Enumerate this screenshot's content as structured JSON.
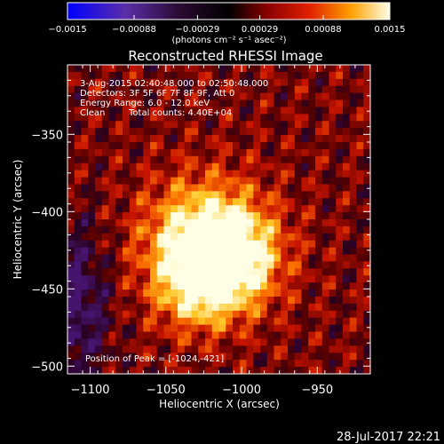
{
  "chart_data": {
    "type": "heatmap",
    "title": "Reconstructed RHESSI Image",
    "xlabel": "Heliocentric X (arcsec)",
    "ylabel": "Heliocentric Y (arcsec)",
    "xlim": [
      -1115,
      -915
    ],
    "ylim": [
      -505,
      -305
    ],
    "x_ticks": [
      -1100,
      -1050,
      -1000,
      -950
    ],
    "x_tick_labels": [
      "−1100",
      "−1050",
      "−1000",
      "−950"
    ],
    "y_ticks": [
      -350,
      -400,
      -450,
      -500
    ],
    "y_tick_labels": [
      "−350",
      "−400",
      "−450",
      "−500"
    ],
    "colorbar": {
      "range": [
        -0.0015,
        0.0015
      ],
      "ticks": [
        -0.0015,
        -0.00088,
        -0.00029,
        0.00029,
        0.00088,
        0.0015
      ],
      "tick_labels": [
        "−0.0015",
        "−0.00088",
        "−0.00029",
        "0.00029",
        "0.00088",
        "0.0015"
      ],
      "unit": "(photons cm⁻² s⁻¹ asec⁻²)"
    },
    "annotations": {
      "time_range": "3-Aug-2015 02:40:48.000 to 02:50:48.000",
      "detectors": "Detectors: 3F 5F 6F 7F 8F 9F, Att 0",
      "energy_range": "Energy Range: 6.0 - 12.0 keV",
      "method": "Clean",
      "total_counts": "Total counts: 4.40E+04",
      "peak_position": "Position of Peak = [-1024,-421]"
    },
    "peak": {
      "x": -1024,
      "y": -421
    },
    "footer_date": "28-Jul-2017 22:21"
  }
}
